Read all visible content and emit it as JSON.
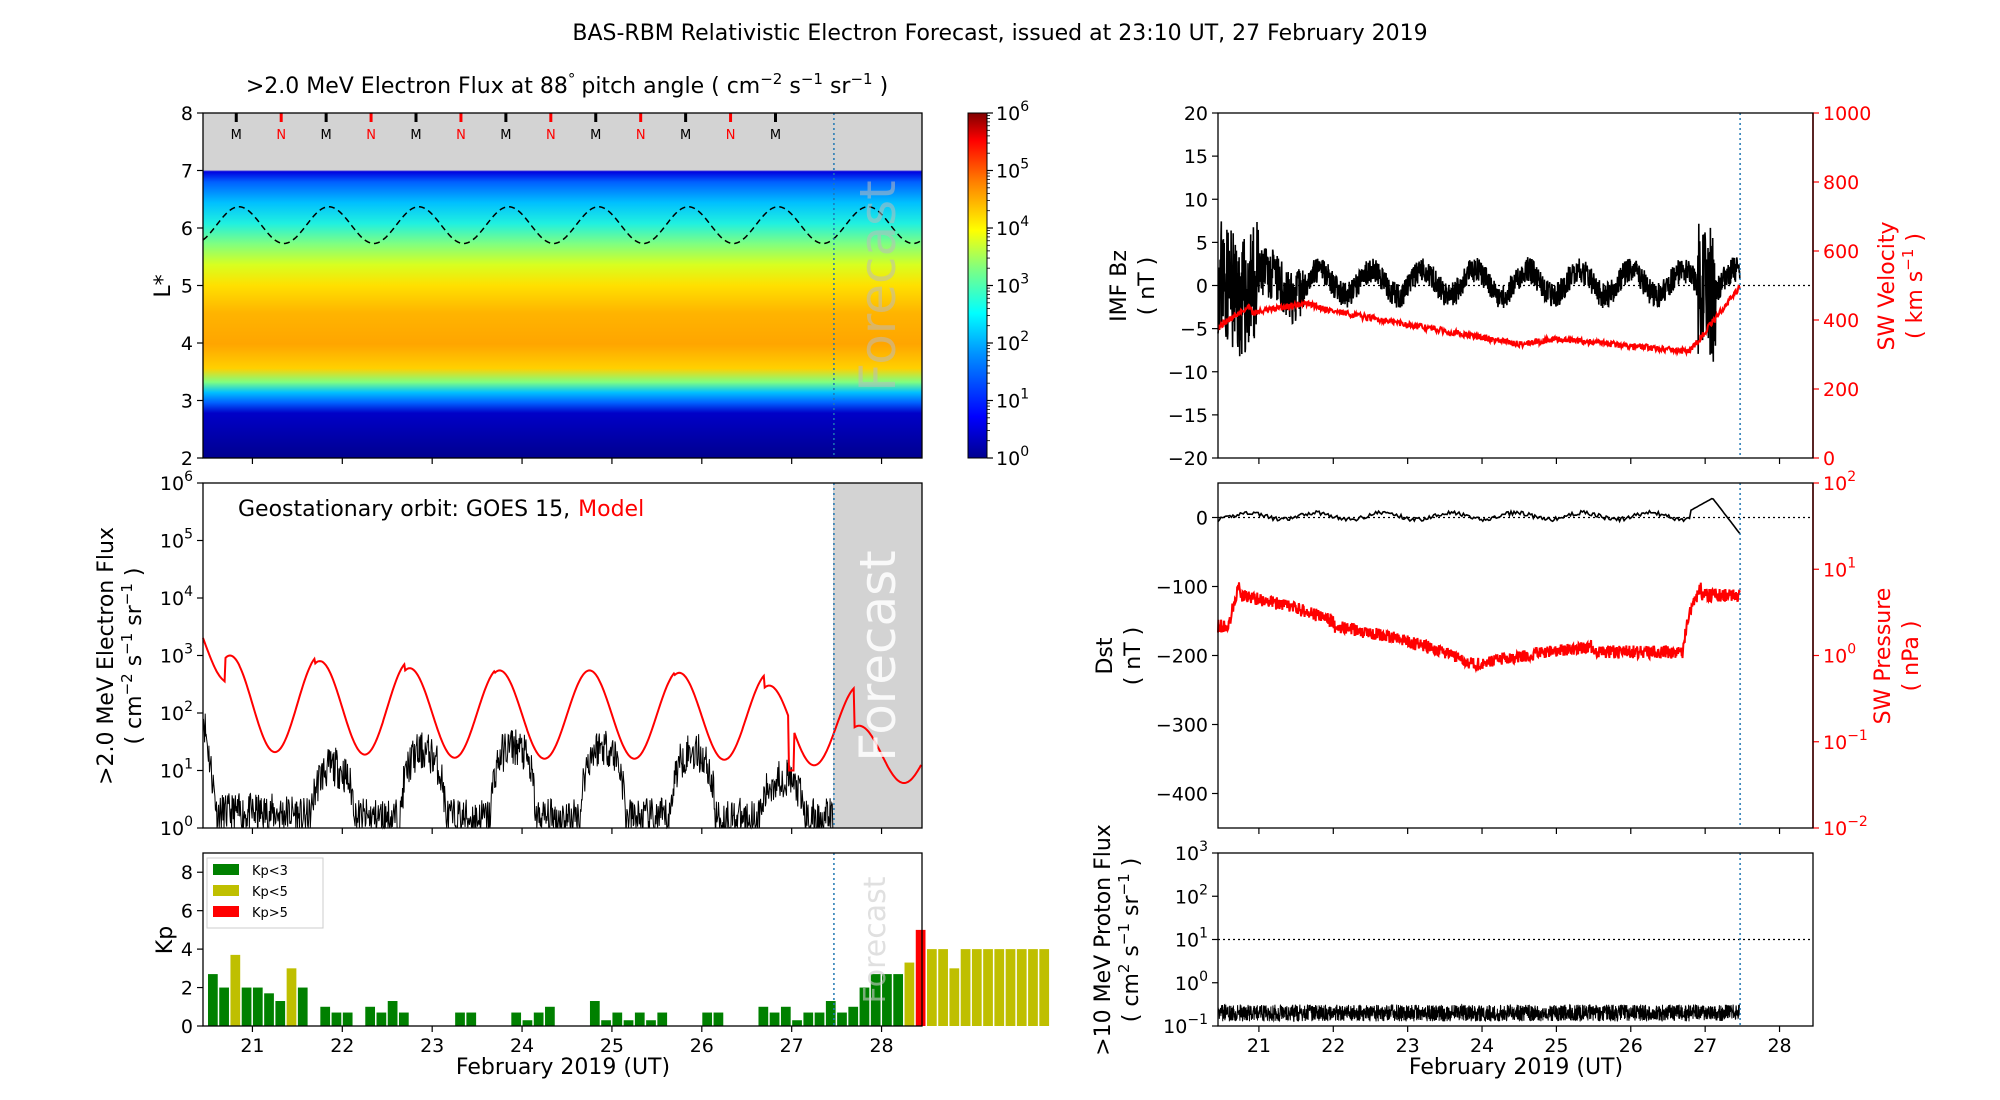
{
  "figure_title": "BAS-RBM Relativistic Electron Forecast, issued at 23:10 UT, 27 February 2019",
  "colors": {
    "model": "#ff0000",
    "observed": "#000000",
    "forecast_bg": "#d3d3d3",
    "forecast_line": "#1f77b4",
    "kp_low": "#008000",
    "kp_mid": "#bfbf00",
    "kp_high": "#ff0000"
  },
  "chart_data": [
    {
      "id": "lstar",
      "type": "heatmap",
      "title": ">2.0 MeV Electron Flux at 88",
      "title_deg": "°",
      "title_units": "pitch angle ( cm",
      "title_sup1": "−2",
      "title_s": " s",
      "title_sup2": "−1",
      "title_sr": " sr",
      "title_sup3": "−1",
      "title_end": " )",
      "ylabel": "L*",
      "ylim": [
        2,
        8
      ],
      "yticks": [
        "2",
        "3",
        "4",
        "5",
        "6",
        "7",
        "8"
      ],
      "xlim": [
        20.45,
        28.45
      ],
      "forecast_start": 27.47,
      "forecast_label": "Forecast",
      "colorbar_labels": [
        "10",
        "10",
        "10",
        "10",
        "10",
        "10",
        "10"
      ],
      "colorbar_exps": [
        "0",
        "1",
        "2",
        "3",
        "4",
        "5",
        "6"
      ],
      "mn_markers": [
        "M",
        "N",
        "M",
        "N",
        "M",
        "N",
        "M",
        "N",
        "M",
        "N",
        "M",
        "N",
        "M"
      ],
      "mn_x": [
        20.82,
        21.32,
        21.82,
        22.32,
        22.82,
        23.32,
        23.82,
        24.32,
        24.82,
        25.32,
        25.82,
        26.32,
        26.82
      ]
    },
    {
      "id": "geo_flux",
      "type": "line",
      "ylabel": ">2.0 MeV Electron Flux",
      "ylabel2_a": "( cm",
      "ylabel2_sup1": "−2",
      "ylabel2_b": " s",
      "ylabel2_sup2": "−1",
      "ylabel2_c": " sr",
      "ylabel2_sup3": "−1",
      "ylabel2_d": " )",
      "annotation": "Geostationary orbit:   GOES 15,",
      "annotation_model": "Model",
      "yscale": "log",
      "ylim": [
        1,
        1000000
      ],
      "ytick_base": [
        "10",
        "10",
        "10",
        "10",
        "10",
        "10",
        "10"
      ],
      "ytick_exp": [
        "0",
        "1",
        "2",
        "3",
        "4",
        "5",
        "6"
      ],
      "forecast_label": "Forecast",
      "model_peaks": [
        1000,
        800,
        600,
        550,
        550,
        500,
        300,
        60
      ]
    },
    {
      "id": "kp",
      "type": "bar",
      "ylabel": "Kp",
      "ylim": [
        0,
        9
      ],
      "yticks": [
        "0",
        "2",
        "4",
        "6",
        "8"
      ],
      "legend": [
        "Kp<3",
        "Kp<5",
        "Kp>5"
      ],
      "legend_placement": "top-left",
      "forecast_label": "Forecast",
      "xlabel": "February 2019 (UT)",
      "xticks": [
        "21",
        "22",
        "23",
        "24",
        "25",
        "26",
        "27",
        "28"
      ],
      "x_start": 20.5,
      "bar_width_days": 0.125,
      "values": [
        2.7,
        2.0,
        3.7,
        2.0,
        2.0,
        1.7,
        1.3,
        3.0,
        2.0,
        0,
        1.0,
        0.7,
        0.7,
        0,
        1.0,
        0.7,
        1.3,
        0.7,
        0,
        0,
        0,
        0,
        0.7,
        0.7,
        0,
        0,
        0,
        0.7,
        0.3,
        0.7,
        1.0,
        0,
        0,
        0,
        1.3,
        0.3,
        0.7,
        0.3,
        0.7,
        0.3,
        0.7,
        0,
        0,
        0,
        0.7,
        0.7,
        0,
        0,
        0,
        1.0,
        0.7,
        1.0,
        0.3,
        0.7,
        0.7,
        1.3,
        0.7,
        1.0,
        2.0,
        2.7,
        2.7,
        2.7,
        3.3,
        5.0,
        4.0,
        4.0,
        3.0,
        4.0,
        4.0,
        4.0,
        4.0,
        4.0,
        4.0,
        4.0,
        4.0
      ]
    },
    {
      "id": "imf_sw",
      "type": "line",
      "ylabel": "IMF Bz",
      "ylabel_units": "( nT )",
      "ylim": [
        -20,
        20
      ],
      "yticks": [
        "−20",
        "−15",
        "−10",
        "−5",
        "0",
        "5",
        "10",
        "15",
        "20"
      ],
      "ylabel_right": "SW Velocity",
      "ylabel_right_units": "( km s",
      "ylabel_right_sup": "−1",
      "ylabel_right_end": " )",
      "ylim_right": [
        0,
        1000
      ],
      "yticks_right": [
        "0",
        "200",
        "400",
        "600",
        "800",
        "1000"
      ]
    },
    {
      "id": "dst_pressure",
      "type": "line",
      "ylabel": "Dst",
      "ylabel_units": "( nT )",
      "ylim": [
        -450,
        50
      ],
      "yticks": [
        "−400",
        "−300",
        "−200",
        "−100",
        "0"
      ],
      "ylabel_right": "SW Pressure",
      "ylabel_right_units": "( nPa )",
      "yscale_right": "log",
      "ylim_right": [
        0.01,
        100
      ],
      "ytick_right_base": [
        "10",
        "10",
        "10",
        "10",
        "10"
      ],
      "ytick_right_exp": [
        "−2",
        "−1",
        "0",
        "1",
        "2"
      ]
    },
    {
      "id": "proton",
      "type": "line",
      "ylabel": ">10 MeV Proton Flux",
      "ylabel2_a": "( cm",
      "ylabel2_sup1": "2",
      "ylabel2_b": " s",
      "ylabel2_sup2": "−1",
      "ylabel2_c": " sr",
      "ylabel2_sup3": "−1",
      "ylabel2_d": " )",
      "yscale": "log",
      "ylim": [
        0.1,
        1000
      ],
      "ytick_base": [
        "10",
        "10",
        "10",
        "10",
        "10"
      ],
      "ytick_exp": [
        "−1",
        "0",
        "1",
        "2",
        "3"
      ],
      "threshold": 10,
      "xlabel": "February 2019 (UT)",
      "xticks": [
        "21",
        "22",
        "23",
        "24",
        "25",
        "26",
        "27",
        "28"
      ]
    }
  ]
}
